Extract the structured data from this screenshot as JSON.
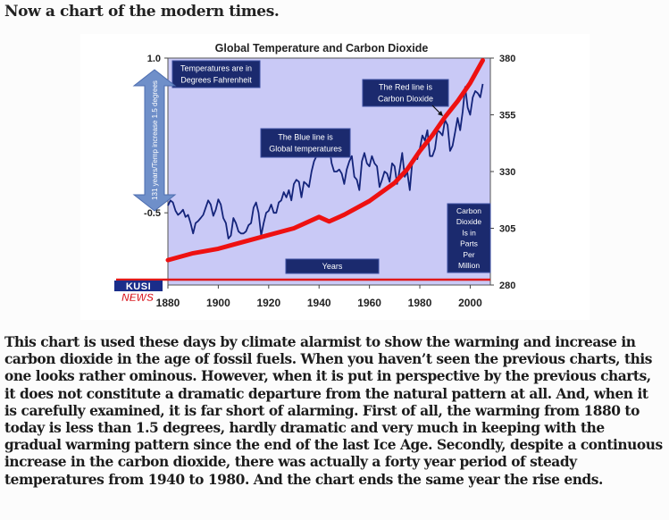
{
  "heading": "Now a chart of the modern times.",
  "chart_data": {
    "type": "line",
    "title": "Global Temperature and Carbon Dioxide",
    "x_range": [
      1880,
      2008
    ],
    "x_ticks": [
      "1880",
      "1900",
      "1920",
      "1940",
      "1960",
      "1980",
      "2000"
    ],
    "left_axis": {
      "range": [
        -1.2,
        1.0
      ],
      "tick_labels": [
        "1.0",
        "-0.5"
      ],
      "tick_values": [
        1.0,
        -0.5
      ]
    },
    "right_axis": {
      "range": [
        280,
        380
      ],
      "tick_labels": [
        "380",
        "355",
        "330",
        "305",
        "280"
      ],
      "tick_values": [
        380,
        355,
        330,
        305,
        280
      ]
    },
    "grid": false,
    "plot_background": "#c9c9f6",
    "series": [
      {
        "name": "Global temperatures",
        "color": "#14247a",
        "axis": "left",
        "x": [
          1880,
          1881,
          1882,
          1883,
          1884,
          1885,
          1886,
          1887,
          1888,
          1889,
          1890,
          1891,
          1892,
          1893,
          1894,
          1895,
          1896,
          1897,
          1898,
          1899,
          1900,
          1901,
          1902,
          1903,
          1904,
          1905,
          1906,
          1907,
          1908,
          1909,
          1910,
          1911,
          1912,
          1913,
          1914,
          1915,
          1916,
          1917,
          1918,
          1919,
          1920,
          1921,
          1922,
          1923,
          1924,
          1925,
          1926,
          1927,
          1928,
          1929,
          1930,
          1931,
          1932,
          1933,
          1934,
          1935,
          1936,
          1937,
          1938,
          1939,
          1940,
          1941,
          1942,
          1943,
          1944,
          1945,
          1946,
          1947,
          1948,
          1949,
          1950,
          1951,
          1952,
          1953,
          1954,
          1955,
          1956,
          1957,
          1958,
          1959,
          1960,
          1961,
          1962,
          1963,
          1964,
          1965,
          1966,
          1967,
          1968,
          1969,
          1970,
          1971,
          1972,
          1973,
          1974,
          1975,
          1976,
          1977,
          1978,
          1979,
          1980,
          1981,
          1982,
          1983,
          1984,
          1985,
          1986,
          1987,
          1988,
          1989,
          1990,
          1991,
          1992,
          1993,
          1994,
          1995,
          1996,
          1997,
          1998,
          1999,
          2000,
          2001,
          2002,
          2003,
          2004,
          2005
        ],
        "values": [
          -0.43,
          -0.38,
          -0.4,
          -0.48,
          -0.52,
          -0.5,
          -0.47,
          -0.54,
          -0.52,
          -0.6,
          -0.7,
          -0.6,
          -0.58,
          -0.55,
          -0.52,
          -0.45,
          -0.38,
          -0.42,
          -0.53,
          -0.47,
          -0.37,
          -0.42,
          -0.55,
          -0.6,
          -0.75,
          -0.72,
          -0.55,
          -0.6,
          -0.68,
          -0.7,
          -0.7,
          -0.68,
          -0.62,
          -0.6,
          -0.45,
          -0.4,
          -0.5,
          -0.72,
          -0.6,
          -0.5,
          -0.48,
          -0.42,
          -0.5,
          -0.5,
          -0.4,
          -0.38,
          -0.3,
          -0.35,
          -0.28,
          -0.38,
          -0.22,
          -0.18,
          -0.2,
          -0.35,
          -0.2,
          -0.22,
          -0.25,
          -0.1,
          0.0,
          0.05,
          0.12,
          0.15,
          0.12,
          0.08,
          0.15,
          -0.02,
          -0.1,
          -0.1,
          -0.08,
          -0.12,
          -0.22,
          -0.08,
          0.0,
          0.05,
          -0.15,
          -0.18,
          -0.28,
          0.0,
          0.08,
          -0.02,
          -0.05,
          0.05,
          -0.02,
          -0.05,
          -0.25,
          -0.18,
          -0.1,
          -0.12,
          -0.2,
          -0.02,
          -0.05,
          -0.22,
          -0.08,
          0.08,
          -0.15,
          -0.1,
          -0.28,
          0.0,
          0.05,
          0.02,
          0.12,
          0.25,
          0.2,
          0.3,
          0.05,
          0.05,
          0.12,
          0.3,
          0.28,
          0.25,
          0.4,
          0.35,
          0.1,
          0.15,
          0.28,
          0.42,
          0.3,
          0.48,
          0.72,
          0.52,
          0.45,
          0.62,
          0.68,
          0.66,
          0.62,
          0.75
        ]
      },
      {
        "name": "Carbon Dioxide",
        "color": "#ee1111",
        "axis": "right",
        "x": [
          1880,
          1890,
          1900,
          1910,
          1920,
          1930,
          1940,
          1944,
          1950,
          1960,
          1970,
          1975,
          1980,
          1985,
          1990,
          1995,
          2000,
          2005
        ],
        "values": [
          291,
          294,
          296,
          299,
          302,
          305,
          310,
          308,
          311,
          317,
          325,
          331,
          339,
          346,
          354,
          361,
          369,
          379
        ]
      }
    ],
    "annotations": [
      {
        "id": "units",
        "text": [
          "Temperatures are in",
          "Degrees Fahrenheit"
        ]
      },
      {
        "id": "blue",
        "text": [
          "The Blue line is",
          "Global temperatures"
        ]
      },
      {
        "id": "red",
        "text": [
          "The Red line is",
          "Carbon Dioxide"
        ]
      },
      {
        "id": "years",
        "text": [
          "Years"
        ]
      },
      {
        "id": "co2units",
        "text": [
          "Carbon",
          "Dioxide",
          "Is in",
          "Parts",
          "Per",
          "Million"
        ]
      },
      {
        "id": "arrow",
        "text": [
          "131 years/Temp increase 1.5 degrees"
        ]
      }
    ],
    "logo": "KUSI NEWS"
  },
  "paragraph": "This chart is used these days by climate alarmist to show the warming and increase in carbon dioxide in the age of fossil fuels. When you haven’t seen the previous charts, this one looks rather ominous. However, when it is put in perspective by the previous charts, it does not constitute a dramatic departure from the natural pattern at all. And, when it is carefully examined, it is far short of alarming. First of all, the warming from 1880 to today is less than 1.5 degrees, hardly dramatic and very much in keeping with the gradual warming pattern since the end of the last Ice Age. Secondly, despite a continuous increase in the carbon dioxide, there was actually a forty year period of steady temperatures from 1940 to 1980. And the chart ends the same year the rise ends."
}
